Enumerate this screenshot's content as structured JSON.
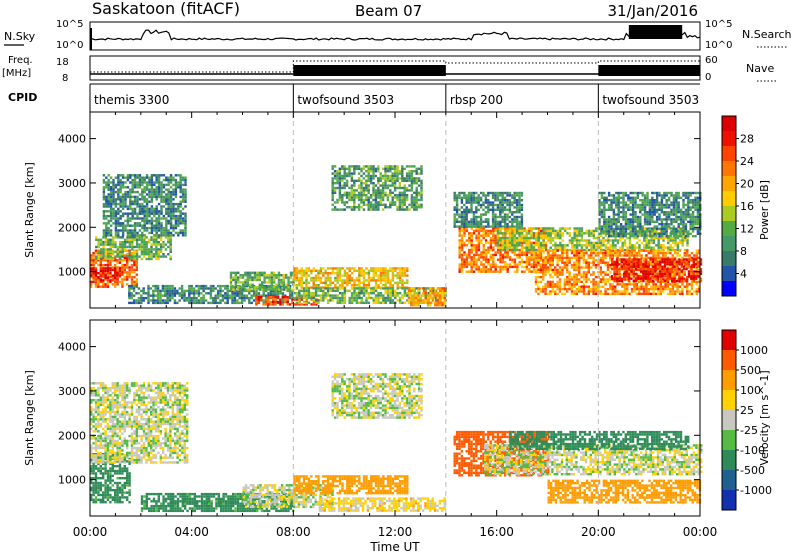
{
  "header": {
    "station": "Saskatoon (fitACF)",
    "beam": "Beam 07",
    "date": "31/Jan/2016"
  },
  "top_panels": {
    "nsky_label": "N.Sky",
    "nsky_ticks": [
      "10^5",
      "10^0"
    ],
    "nsearch_ticks": [
      "10^5",
      "10^0"
    ],
    "nsearch_label": "N.Search",
    "freq_label_1": "Freq.",
    "freq_label_2": "[MHz]",
    "freq_ticks": [
      "18",
      "8"
    ],
    "nave_ticks": [
      "60",
      "0"
    ],
    "nave_label": "Nave",
    "cpid_label": "CPID",
    "cpid_segments": [
      {
        "label": "themis 3300",
        "start_hr": 0,
        "end_hr": 8
      },
      {
        "label": "twofsound 3503",
        "start_hr": 8,
        "end_hr": 14
      },
      {
        "label": "rbsp 200",
        "start_hr": 14,
        "end_hr": 20
      },
      {
        "label": "twofsound 3503",
        "start_hr": 20,
        "end_hr": 24
      }
    ]
  },
  "chart_data": [
    {
      "type": "heatmap",
      "ylabel": "Slant Range [km]",
      "ylim": [
        180,
        4600
      ],
      "yticks": [
        "1000",
        "2000",
        "3000",
        "4000"
      ],
      "colorbar_label": "Power [dB]",
      "colorbar_ticks": [
        "28",
        "24",
        "20",
        "16",
        "12",
        "8",
        "4"
      ],
      "colorbar_colors": [
        "#0000ff",
        "#2255aa",
        "#3a7a6a",
        "#449966",
        "#55aa44",
        "#aacc22",
        "#ffcc00",
        "#ffa500",
        "#ff7700",
        "#ff4400",
        "#ee1100",
        "#dd0000"
      ],
      "regions": [
        {
          "x0": 0.0,
          "x1": 1.8,
          "y0": 650,
          "y1": 1500,
          "value": 24
        },
        {
          "x0": 0.0,
          "x1": 1.2,
          "y0": 800,
          "y1": 1100,
          "value": 30
        },
        {
          "x0": 0.2,
          "x1": 3.2,
          "y0": 1300,
          "y1": 1800,
          "value": 12
        },
        {
          "x0": 0.5,
          "x1": 3.8,
          "y0": 1800,
          "y1": 3200,
          "value": 8
        },
        {
          "x0": 1.5,
          "x1": 8.0,
          "y0": 300,
          "y1": 700,
          "value": 8
        },
        {
          "x0": 5.5,
          "x1": 8.0,
          "y0": 600,
          "y1": 1000,
          "value": 12
        },
        {
          "x0": 6.5,
          "x1": 9.0,
          "y0": 250,
          "y1": 450,
          "value": 26
        },
        {
          "x0": 8.0,
          "x1": 12.5,
          "y0": 650,
          "y1": 1100,
          "value": 18
        },
        {
          "x0": 8.0,
          "x1": 14.0,
          "y0": 300,
          "y1": 650,
          "value": 12
        },
        {
          "x0": 9.5,
          "x1": 13.0,
          "y0": 2400,
          "y1": 3400,
          "value": 10
        },
        {
          "x0": 12.5,
          "x1": 14.0,
          "y0": 250,
          "y1": 650,
          "value": 20
        },
        {
          "x0": 14.5,
          "x1": 18.0,
          "y0": 1000,
          "y1": 2000,
          "value": 22
        },
        {
          "x0": 14.3,
          "x1": 17.0,
          "y0": 2000,
          "y1": 2800,
          "value": 8
        },
        {
          "x0": 16.0,
          "x1": 23.5,
          "y0": 1500,
          "y1": 2000,
          "value": 14
        },
        {
          "x0": 17.5,
          "x1": 24.0,
          "y0": 500,
          "y1": 1500,
          "value": 22
        },
        {
          "x0": 20.5,
          "x1": 24.0,
          "y0": 800,
          "y1": 1300,
          "value": 28
        },
        {
          "x0": 20.0,
          "x1": 24.0,
          "y0": 1800,
          "y1": 2800,
          "value": 8
        }
      ]
    },
    {
      "type": "heatmap",
      "ylabel": "Slant Range [km]",
      "ylim": [
        180,
        4600
      ],
      "yticks": [
        "1000",
        "2000",
        "3000",
        "4000"
      ],
      "xticks": [
        "00:00",
        "04:00",
        "08:00",
        "12:00",
        "16:00",
        "20:00",
        "00:00"
      ],
      "xlabel": "Time UT",
      "colorbar_label": "Velocity [m s^-1]",
      "colorbar_ticks": [
        "1000",
        "500",
        "100",
        "25",
        "-25",
        "-100",
        "-500",
        "-1000"
      ],
      "colorbar_colors": [
        "#1030b0",
        "#206090",
        "#2e8b57",
        "#55bb44",
        "#c8c8c0",
        "#ffd200",
        "#ff9c00",
        "#ff5a00",
        "#e00000"
      ],
      "regions": [
        {
          "x0": 0.0,
          "x1": 1.6,
          "y0": 500,
          "y1": 1600,
          "value": 150
        },
        {
          "x0": 0.0,
          "x1": 3.8,
          "y0": 1400,
          "y1": 3200,
          "value": 0
        },
        {
          "x0": 2.0,
          "x1": 8.0,
          "y0": 300,
          "y1": 700,
          "value": 150
        },
        {
          "x0": 6.0,
          "x1": 9.5,
          "y0": 400,
          "y1": 900,
          "value": 0
        },
        {
          "x0": 8.0,
          "x1": 12.5,
          "y0": 700,
          "y1": 1100,
          "value": -200
        },
        {
          "x0": 9.5,
          "x1": 13.0,
          "y0": 2400,
          "y1": 3400,
          "value": 0
        },
        {
          "x0": 9.0,
          "x1": 14.0,
          "y0": 300,
          "y1": 600,
          "value": -50
        },
        {
          "x0": 14.3,
          "x1": 18.0,
          "y0": 1100,
          "y1": 2100,
          "value": -600
        },
        {
          "x0": 15.5,
          "x1": 24.0,
          "y0": 1100,
          "y1": 1800,
          "value": 0
        },
        {
          "x0": 16.5,
          "x1": 23.5,
          "y0": 1700,
          "y1": 2100,
          "value": 300
        },
        {
          "x0": 18.0,
          "x1": 24.0,
          "y0": 500,
          "y1": 1000,
          "value": -200
        }
      ]
    }
  ]
}
